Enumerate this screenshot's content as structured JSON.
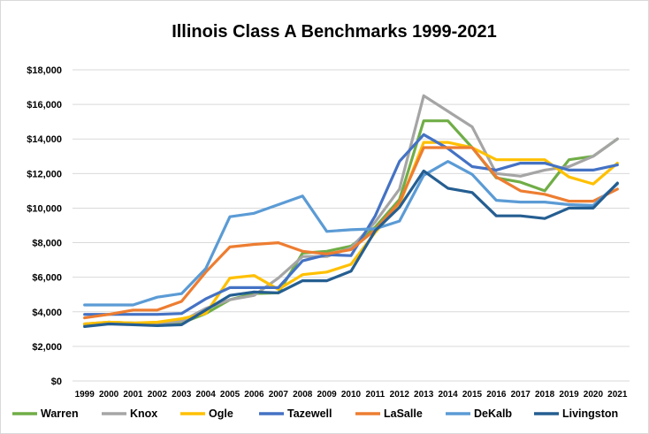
{
  "chart_data": {
    "type": "line",
    "title": "Illinois Class A Benchmarks 1999-2021",
    "xlabel": "",
    "ylabel": "",
    "ylim": [
      0,
      18000
    ],
    "yticks": [
      0,
      2000,
      4000,
      6000,
      8000,
      10000,
      12000,
      14000,
      16000,
      18000
    ],
    "ytick_labels": [
      "$0",
      "$2,000",
      "$4,000",
      "$6,000",
      "$8,000",
      "$10,000",
      "$12,000",
      "$14,000",
      "$16,000",
      "$18,000"
    ],
    "grid": true,
    "legend_position": "bottom",
    "categories": [
      "1999",
      "2000",
      "2001",
      "2002",
      "2003",
      "2004",
      "2005",
      "2006",
      "2007",
      "2008",
      "2009",
      "2010",
      "2011",
      "2012",
      "2013",
      "2014",
      "2015",
      "2016",
      "2017",
      "2018",
      "2019",
      "2020",
      "2021"
    ],
    "series": [
      {
        "name": "Warren",
        "color": "#70ad47",
        "values": [
          3250,
          3400,
          3350,
          3300,
          3350,
          3900,
          4700,
          5050,
          5100,
          7400,
          7500,
          7800,
          8900,
          10500,
          15050,
          15050,
          13500,
          11750,
          11500,
          11000,
          12800,
          13000,
          14000
        ]
      },
      {
        "name": "Knox",
        "color": "#a5a5a5",
        "values": [
          3300,
          3400,
          3350,
          3350,
          3450,
          4200,
          4700,
          4950,
          5950,
          7200,
          7200,
          7700,
          9200,
          11100,
          16500,
          15600,
          14700,
          12000,
          11850,
          12200,
          12400,
          13000,
          14000
        ]
      },
      {
        "name": "Ogle",
        "color": "#ffc000",
        "values": [
          3300,
          3400,
          3350,
          3400,
          3600,
          3900,
          5950,
          6100,
          5300,
          6150,
          6300,
          6750,
          8600,
          10200,
          13800,
          13800,
          13500,
          12800,
          12800,
          12800,
          11800,
          11400,
          12600
        ]
      },
      {
        "name": "Tazewell",
        "color": "#4472c4",
        "values": [
          3850,
          3850,
          3850,
          3850,
          3900,
          4750,
          5400,
          5400,
          5400,
          6950,
          7300,
          7250,
          9550,
          12700,
          14250,
          13450,
          12400,
          12200,
          12600,
          12600,
          12200,
          12200,
          12500
        ]
      },
      {
        "name": "LaSalle",
        "color": "#ed7d31",
        "values": [
          3650,
          3850,
          4100,
          4100,
          4600,
          6300,
          7750,
          7900,
          8000,
          7500,
          7350,
          7600,
          8750,
          10350,
          13500,
          13500,
          13500,
          11800,
          11000,
          10800,
          10400,
          10400,
          11100
        ]
      },
      {
        "name": "DeKalb",
        "color": "#5b9bd5",
        "values": [
          4400,
          4400,
          4400,
          4850,
          5050,
          6500,
          9500,
          9700,
          10200,
          10700,
          8650,
          8750,
          8800,
          9250,
          11900,
          12700,
          11950,
          10450,
          10350,
          10350,
          10200,
          10150,
          11400
        ]
      },
      {
        "name": "Livingston",
        "color": "#255e91",
        "values": [
          3150,
          3300,
          3250,
          3200,
          3250,
          4100,
          4950,
          5150,
          5100,
          5800,
          5800,
          6350,
          8700,
          10050,
          12150,
          11150,
          10900,
          9550,
          9550,
          9400,
          10000,
          10000,
          11450
        ]
      }
    ]
  }
}
